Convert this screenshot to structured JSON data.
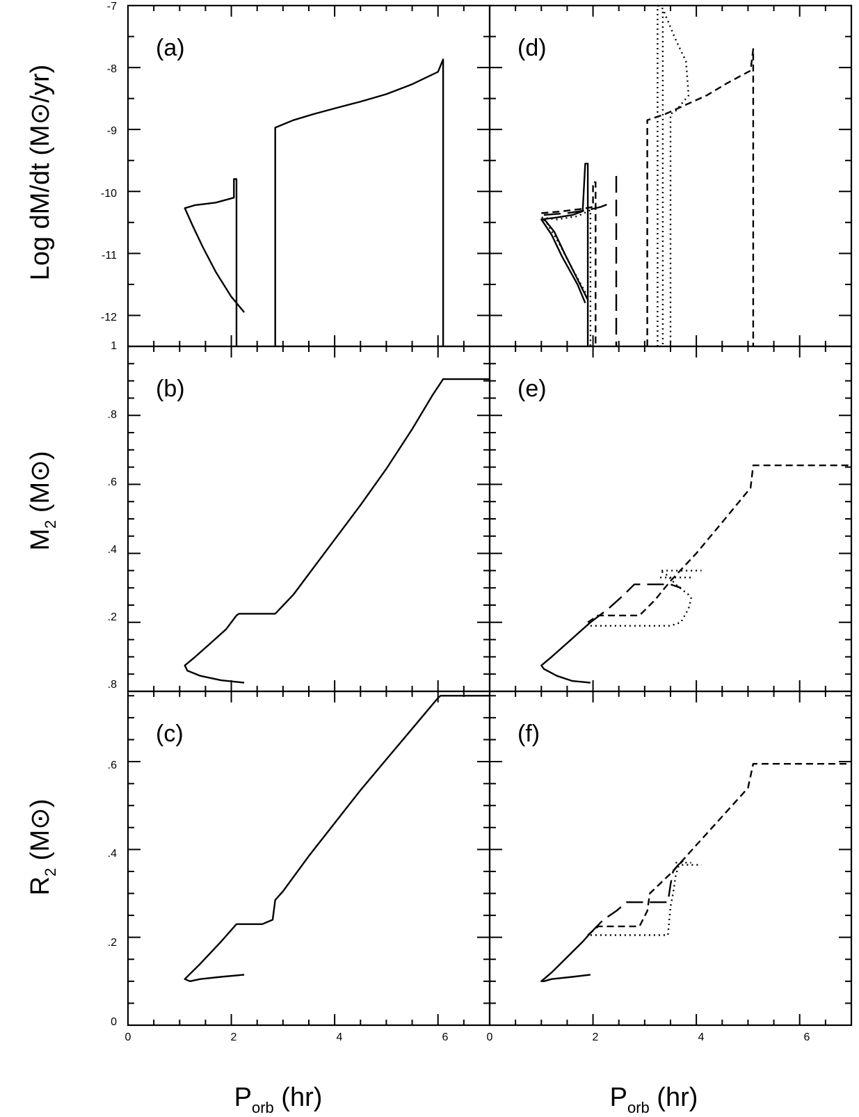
{
  "figure": {
    "y_labels": {
      "top": {
        "main": "Log dM/dt (M",
        "sun": "⊙",
        "tail": "/yr)"
      },
      "middle": {
        "main": "M",
        "sub": "2",
        "tail": " (M",
        "sun": "⊙",
        "end": ")"
      },
      "bottom": {
        "main": "R",
        "sub": "2",
        "tail": " (M",
        "sun": "⊙",
        "end": ")"
      }
    },
    "x_label": {
      "main": "P",
      "sub": "orb",
      "tail": " (hr)"
    },
    "y_tick_labels": {
      "top": [
        "-7",
        "-8",
        "-9",
        "-10",
        "-11",
        "-12",
        "1"
      ],
      "middle": [
        ".8",
        ".6",
        ".4",
        ".2",
        ".8"
      ],
      "bottom": [
        ".6",
        ".4",
        ".2",
        "0"
      ]
    },
    "x_tick_labels": [
      "0",
      "2",
      "4",
      "6"
    ]
  },
  "chart_data": [
    {
      "type": "line",
      "panel_label": "(a)",
      "row": 0,
      "col": 0,
      "xlim": [
        0,
        7
      ],
      "ylim": [
        -12.5,
        -7
      ],
      "ylabel": "Log dM/dt (M⊙/yr)",
      "series": [
        {
          "style": "solid",
          "points": [
            [
              2.25,
              -11.95
            ],
            [
              2.0,
              -11.7
            ],
            [
              1.7,
              -11.3
            ],
            [
              1.45,
              -10.9
            ],
            [
              1.25,
              -10.55
            ],
            [
              1.1,
              -10.27
            ],
            [
              1.3,
              -10.22
            ],
            [
              1.7,
              -10.18
            ],
            [
              2.05,
              -10.1
            ],
            [
              2.05,
              -9.8
            ],
            [
              2.1,
              -9.8
            ],
            [
              2.1,
              -12.5
            ]
          ]
        },
        {
          "style": "solid",
          "points": [
            [
              2.85,
              -12.5
            ],
            [
              2.85,
              -8.97
            ],
            [
              3.2,
              -8.85
            ],
            [
              3.6,
              -8.75
            ],
            [
              4.0,
              -8.66
            ],
            [
              4.5,
              -8.55
            ],
            [
              5.0,
              -8.43
            ],
            [
              5.5,
              -8.27
            ],
            [
              6.0,
              -8.07
            ],
            [
              6.1,
              -7.87
            ],
            [
              6.1,
              -12.5
            ]
          ]
        }
      ]
    },
    {
      "type": "line",
      "panel_label": "(b)",
      "row": 1,
      "col": 0,
      "xlim": [
        0,
        7
      ],
      "ylim": [
        0,
        1
      ],
      "ylabel": "M2 (M⊙)",
      "series": [
        {
          "style": "solid",
          "points": [
            [
              2.25,
              0.025
            ],
            [
              1.8,
              0.032
            ],
            [
              1.4,
              0.045
            ],
            [
              1.15,
              0.06
            ],
            [
              1.1,
              0.075
            ],
            [
              1.3,
              0.1
            ],
            [
              1.6,
              0.14
            ],
            [
              1.9,
              0.18
            ],
            [
              2.1,
              0.22
            ],
            [
              2.15,
              0.225
            ],
            [
              2.85,
              0.225
            ],
            [
              3.2,
              0.28
            ],
            [
              3.6,
              0.36
            ],
            [
              4.0,
              0.44
            ],
            [
              4.5,
              0.54
            ],
            [
              5.0,
              0.645
            ],
            [
              5.5,
              0.76
            ],
            [
              5.9,
              0.86
            ],
            [
              6.1,
              0.905
            ],
            [
              7,
              0.905
            ]
          ]
        }
      ]
    },
    {
      "type": "line",
      "panel_label": "(c)",
      "row": 2,
      "col": 0,
      "xlim": [
        0,
        7
      ],
      "ylim": [
        0,
        0.76
      ],
      "ylabel": "R2 (M⊙)",
      "series": [
        {
          "style": "solid",
          "points": [
            [
              2.25,
              0.115
            ],
            [
              1.8,
              0.11
            ],
            [
              1.4,
              0.105
            ],
            [
              1.2,
              0.1
            ],
            [
              1.1,
              0.105
            ],
            [
              1.4,
              0.14
            ],
            [
              1.8,
              0.19
            ],
            [
              2.1,
              0.23
            ],
            [
              2.6,
              0.23
            ],
            [
              2.8,
              0.24
            ],
            [
              2.85,
              0.285
            ],
            [
              3.0,
              0.305
            ],
            [
              3.5,
              0.385
            ],
            [
              4.0,
              0.46
            ],
            [
              4.5,
              0.535
            ],
            [
              5.0,
              0.605
            ],
            [
              5.5,
              0.675
            ],
            [
              6.0,
              0.745
            ],
            [
              6.05,
              0.75
            ],
            [
              7,
              0.75
            ]
          ]
        }
      ]
    },
    {
      "type": "line",
      "panel_label": "(d)",
      "row": 0,
      "col": 1,
      "xlim": [
        0,
        7
      ],
      "ylim": [
        -12.5,
        -7
      ],
      "ylabel": "Log dM/dt (M⊙/yr)",
      "series": [
        {
          "style": "solid",
          "points": [
            [
              1.85,
              -11.8
            ],
            [
              1.7,
              -11.5
            ],
            [
              1.4,
              -11.05
            ],
            [
              1.2,
              -10.7
            ],
            [
              1.0,
              -10.45
            ],
            [
              1.3,
              -10.42
            ],
            [
              1.6,
              -10.38
            ],
            [
              1.8,
              -10.32
            ],
            [
              1.85,
              -9.55
            ],
            [
              1.9,
              -9.55
            ],
            [
              1.9,
              -12.5
            ]
          ]
        },
        {
          "style": "solid",
          "points": [
            [
              1.9,
              -11.75
            ],
            [
              1.72,
              -11.45
            ],
            [
              1.45,
              -11.0
            ],
            [
              1.25,
              -10.65
            ],
            [
              1.05,
              -10.44
            ]
          ]
        },
        {
          "style": "dotted",
          "points": [
            [
              1.9,
              -11.7
            ],
            [
              1.6,
              -11.25
            ],
            [
              1.35,
              -10.85
            ],
            [
              1.1,
              -10.5
            ],
            [
              1.0,
              -10.42
            ],
            [
              1.3,
              -10.45
            ],
            [
              1.7,
              -10.4
            ],
            [
              1.95,
              -10.3
            ],
            [
              1.95,
              -12.5
            ]
          ]
        },
        {
          "style": "shortdash",
          "points": [
            [
              1.0,
              -10.35
            ],
            [
              1.4,
              -10.32
            ],
            [
              1.8,
              -10.28
            ],
            [
              2.0,
              -10.25
            ],
            [
              2.0,
              -9.85
            ],
            [
              2.05,
              -9.85
            ],
            [
              2.05,
              -12.5
            ]
          ]
        },
        {
          "style": "longdash",
          "points": [
            [
              1.05,
              -10.38
            ],
            [
              1.5,
              -10.35
            ],
            [
              1.9,
              -10.3
            ],
            [
              2.15,
              -10.25
            ],
            [
              2.3,
              -10.2
            ]
          ]
        },
        {
          "style": "longdash",
          "points": [
            [
              2.45,
              -9.75
            ],
            [
              2.45,
              -12.5
            ]
          ]
        },
        {
          "style": "shortdash",
          "points": [
            [
              3.05,
              -12.5
            ],
            [
              3.05,
              -8.85
            ],
            [
              3.4,
              -8.75
            ],
            [
              3.8,
              -8.6
            ],
            [
              4.2,
              -8.45
            ],
            [
              4.6,
              -8.25
            ],
            [
              5.05,
              -8.05
            ],
            [
              5.1,
              -7.7
            ],
            [
              5.1,
              -12.5
            ]
          ]
        },
        {
          "style": "dotted",
          "points": [
            [
              3.25,
              -12.5
            ],
            [
              3.25,
              -7.0
            ],
            [
              3.35,
              -7.05
            ],
            [
              3.45,
              -7.25
            ],
            [
              3.6,
              -7.55
            ],
            [
              3.8,
              -7.9
            ],
            [
              3.85,
              -8.45
            ],
            [
              3.75,
              -8.55
            ],
            [
              3.6,
              -8.7
            ],
            [
              3.5,
              -8.75
            ],
            [
              3.5,
              -12.5
            ]
          ]
        },
        {
          "style": "dotted",
          "points": [
            [
              3.35,
              -7.1
            ],
            [
              3.35,
              -12.5
            ]
          ]
        }
      ]
    },
    {
      "type": "line",
      "panel_label": "(e)",
      "row": 1,
      "col": 1,
      "xlim": [
        0,
        7
      ],
      "ylim": [
        0,
        1
      ],
      "ylabel": "M2 (M⊙)",
      "series": [
        {
          "style": "solid",
          "points": [
            [
              1.95,
              0.025
            ],
            [
              1.6,
              0.03
            ],
            [
              1.3,
              0.045
            ],
            [
              1.05,
              0.065
            ],
            [
              1.0,
              0.075
            ],
            [
              1.2,
              0.1
            ],
            [
              1.5,
              0.14
            ],
            [
              1.8,
              0.18
            ],
            [
              1.95,
              0.2
            ]
          ]
        },
        {
          "style": "shortdash",
          "points": [
            [
              1.9,
              0.2
            ],
            [
              2.1,
              0.22
            ],
            [
              2.9,
              0.22
            ],
            [
              3.2,
              0.265
            ],
            [
              3.5,
              0.32
            ],
            [
              4.0,
              0.4
            ],
            [
              4.5,
              0.49
            ],
            [
              5.05,
              0.59
            ],
            [
              5.1,
              0.655
            ],
            [
              7,
              0.655
            ]
          ]
        },
        {
          "style": "longdash",
          "points": [
            [
              1.95,
              0.2
            ],
            [
              2.3,
              0.24
            ],
            [
              2.6,
              0.28
            ],
            [
              2.8,
              0.31
            ],
            [
              3.5,
              0.31
            ],
            [
              3.7,
              0.3
            ]
          ]
        },
        {
          "style": "dotted",
          "points": [
            [
              1.95,
              0.19
            ],
            [
              2.2,
              0.19
            ],
            [
              3.5,
              0.19
            ],
            [
              3.7,
              0.2
            ],
            [
              3.85,
              0.24
            ],
            [
              3.9,
              0.27
            ],
            [
              3.85,
              0.28
            ],
            [
              3.6,
              0.31
            ],
            [
              3.45,
              0.335
            ],
            [
              3.3,
              0.35
            ],
            [
              4.1,
              0.35
            ]
          ]
        },
        {
          "style": "dotted",
          "points": [
            [
              3.3,
              0.33
            ],
            [
              3.9,
              0.33
            ]
          ]
        }
      ]
    },
    {
      "type": "line",
      "panel_label": "(f)",
      "row": 2,
      "col": 1,
      "xlim": [
        0,
        7
      ],
      "ylim": [
        0,
        0.76
      ],
      "ylabel": "R2 (M⊙)",
      "series": [
        {
          "style": "solid",
          "points": [
            [
              1.95,
              0.115
            ],
            [
              1.6,
              0.11
            ],
            [
              1.2,
              0.105
            ],
            [
              1.05,
              0.1
            ],
            [
              1.0,
              0.1
            ],
            [
              1.2,
              0.12
            ],
            [
              1.5,
              0.155
            ],
            [
              1.8,
              0.19
            ],
            [
              1.95,
              0.21
            ]
          ]
        },
        {
          "style": "shortdash",
          "points": [
            [
              1.9,
              0.205
            ],
            [
              2.1,
              0.225
            ],
            [
              2.9,
              0.225
            ],
            [
              3.05,
              0.26
            ],
            [
              3.1,
              0.3
            ],
            [
              3.5,
              0.345
            ],
            [
              4.0,
              0.41
            ],
            [
              4.5,
              0.475
            ],
            [
              5.0,
              0.54
            ],
            [
              5.1,
              0.595
            ],
            [
              7,
              0.595
            ]
          ]
        },
        {
          "style": "longdash",
          "points": [
            [
              1.95,
              0.21
            ],
            [
              2.2,
              0.24
            ],
            [
              2.45,
              0.26
            ],
            [
              2.65,
              0.28
            ],
            [
              3.45,
              0.28
            ],
            [
              3.5,
              0.32
            ],
            [
              3.55,
              0.35
            ],
            [
              3.65,
              0.365
            ],
            [
              3.75,
              0.375
            ]
          ]
        },
        {
          "style": "dotted",
          "points": [
            [
              1.95,
              0.205
            ],
            [
              2.2,
              0.205
            ],
            [
              3.45,
              0.205
            ],
            [
              3.5,
              0.27
            ],
            [
              3.55,
              0.3
            ],
            [
              3.6,
              0.34
            ],
            [
              3.65,
              0.36
            ],
            [
              3.7,
              0.365
            ],
            [
              4.1,
              0.365
            ]
          ]
        },
        {
          "style": "dotted",
          "points": [
            [
              3.6,
              0.37
            ],
            [
              3.9,
              0.37
            ]
          ]
        }
      ]
    }
  ]
}
